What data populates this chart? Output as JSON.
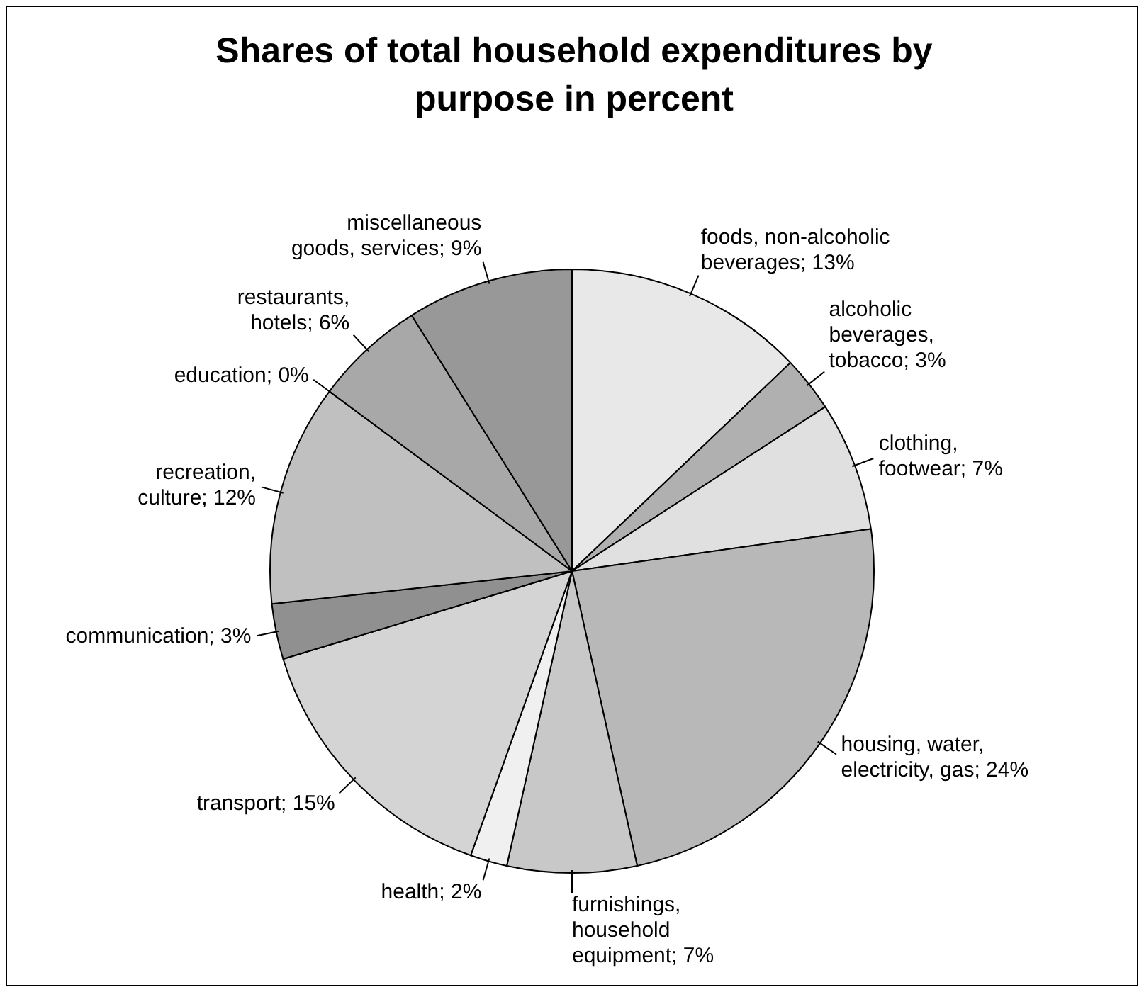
{
  "chart_data": {
    "type": "pie",
    "title": "Shares of total household expenditures by purpose in percent",
    "categories": [
      "foods, non-alcoholic beverages",
      "alcoholic beverages, tobacco",
      "clothing, footwear",
      "housing, water, electricity, gas",
      "furnishings, household equipment",
      "health",
      "transport",
      "communication",
      "recreation, culture",
      "education",
      "restaurants, hotels",
      "miscellaneous goods, services"
    ],
    "values": [
      13,
      3,
      7,
      24,
      7,
      2,
      15,
      3,
      12,
      0,
      6,
      9
    ],
    "value_labels": [
      "13%",
      "3%",
      "7%",
      "24%",
      "7%",
      "2%",
      "15%",
      "3%",
      "12%",
      "0%",
      "6%",
      "9%"
    ],
    "colors": [
      "#e8e8e8",
      "#b0b0b0",
      "#e0e0e0",
      "#b8b8b8",
      "#c8c8c8",
      "#f0f0f0",
      "#d4d4d4",
      "#909090",
      "#c0c0c0",
      "#000000",
      "#a8a8a8",
      "#989898"
    ]
  }
}
